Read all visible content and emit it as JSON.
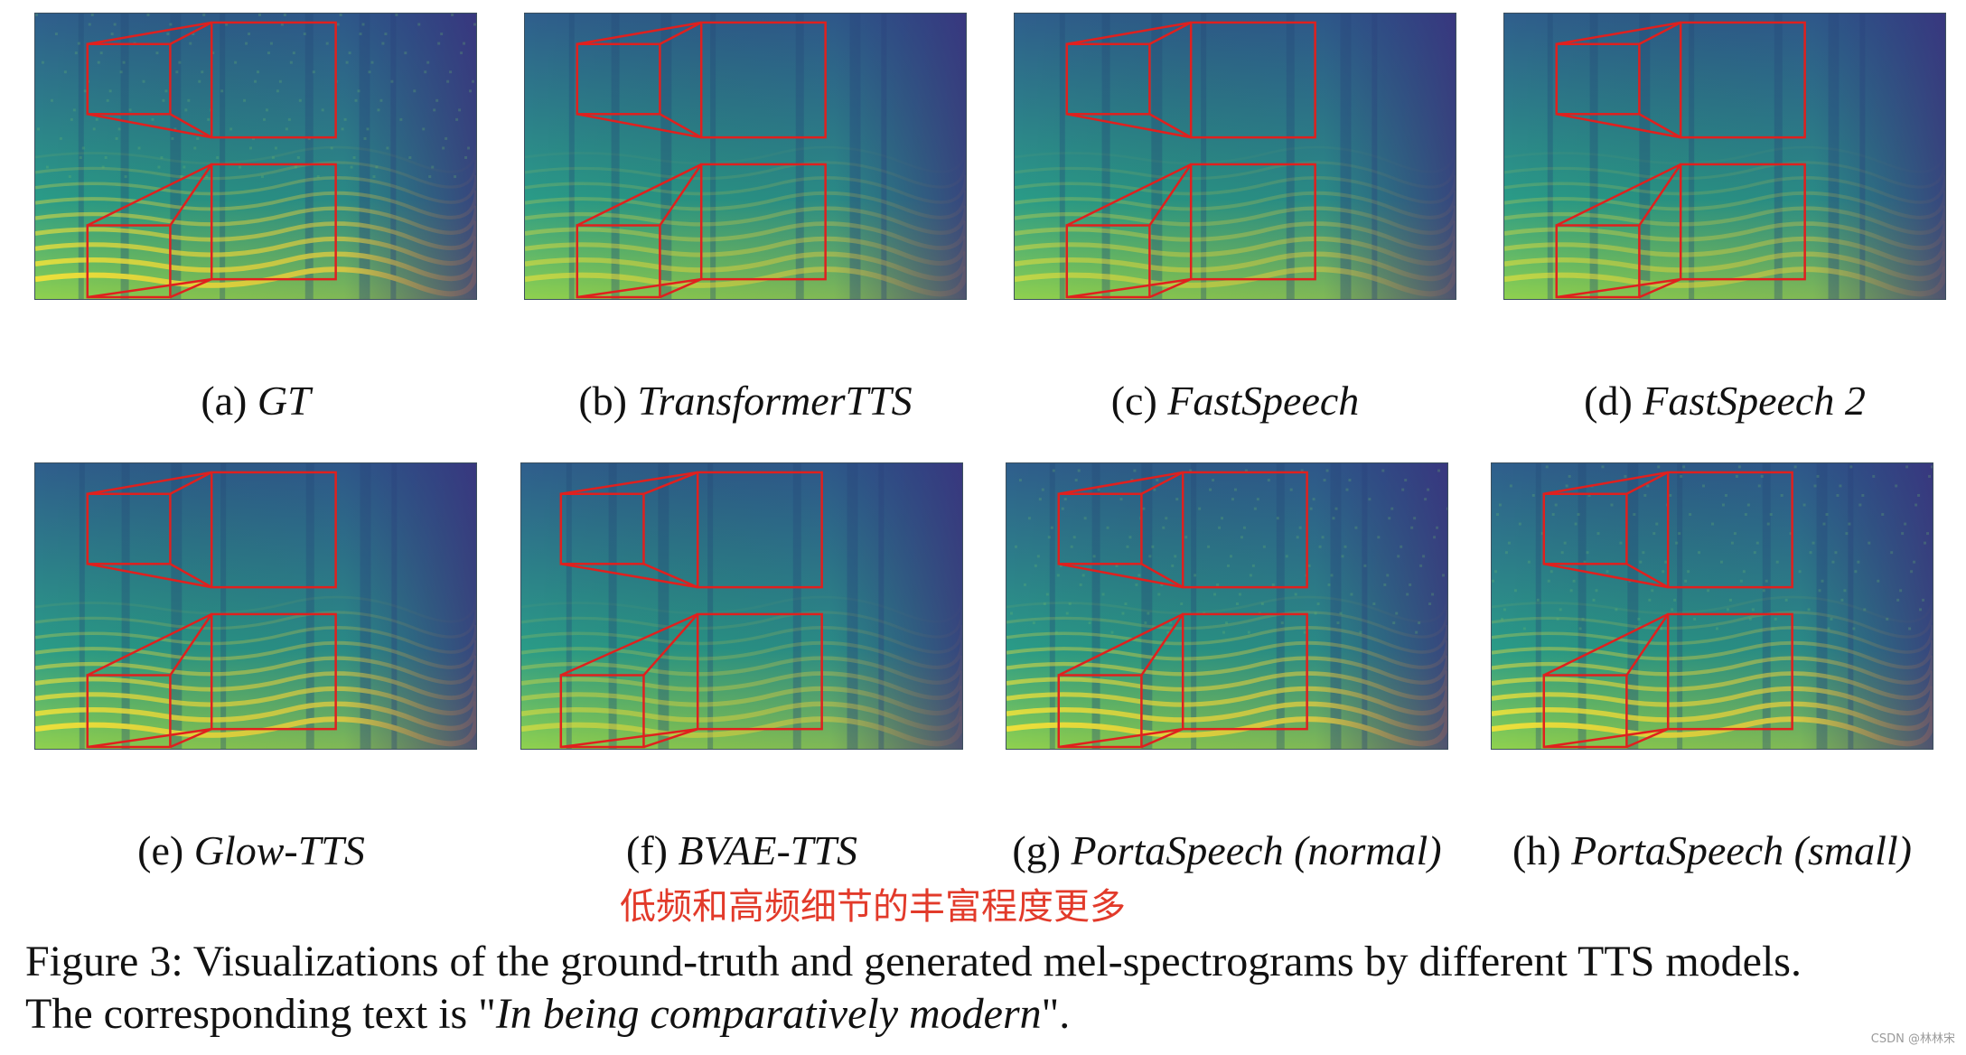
{
  "panels": [
    {
      "letter": "(a)",
      "model": "GT"
    },
    {
      "letter": "(b)",
      "model": "TransformerTTS"
    },
    {
      "letter": "(c)",
      "model": "FastSpeech"
    },
    {
      "letter": "(d)",
      "model": "FastSpeech 2"
    },
    {
      "letter": "(e)",
      "model": "Glow-TTS"
    },
    {
      "letter": "(f)",
      "model": "BVAE-TTS"
    },
    {
      "letter": "(g)",
      "model": "PortaSpeech (normal)"
    },
    {
      "letter": "(h)",
      "model": "PortaSpeech (small)"
    }
  ],
  "annotation": "低频和高频细节的丰富程度更多",
  "figure_caption": {
    "line1": "Figure 3:  Visualizations of the ground-truth and generated mel-spectrograms by different TTS models.",
    "line2_prefix": "The corresponding text is \"",
    "line2_italic": "In being comparatively modern",
    "line2_suffix": "\"."
  },
  "watermark": "CSDN @林林宋",
  "colors": {
    "spectrogram_low": "#3b2a7a",
    "spectrogram_mid": "#2a8a8a",
    "spectrogram_high": "#f2e23a",
    "zoom_box": "#e0201e"
  }
}
